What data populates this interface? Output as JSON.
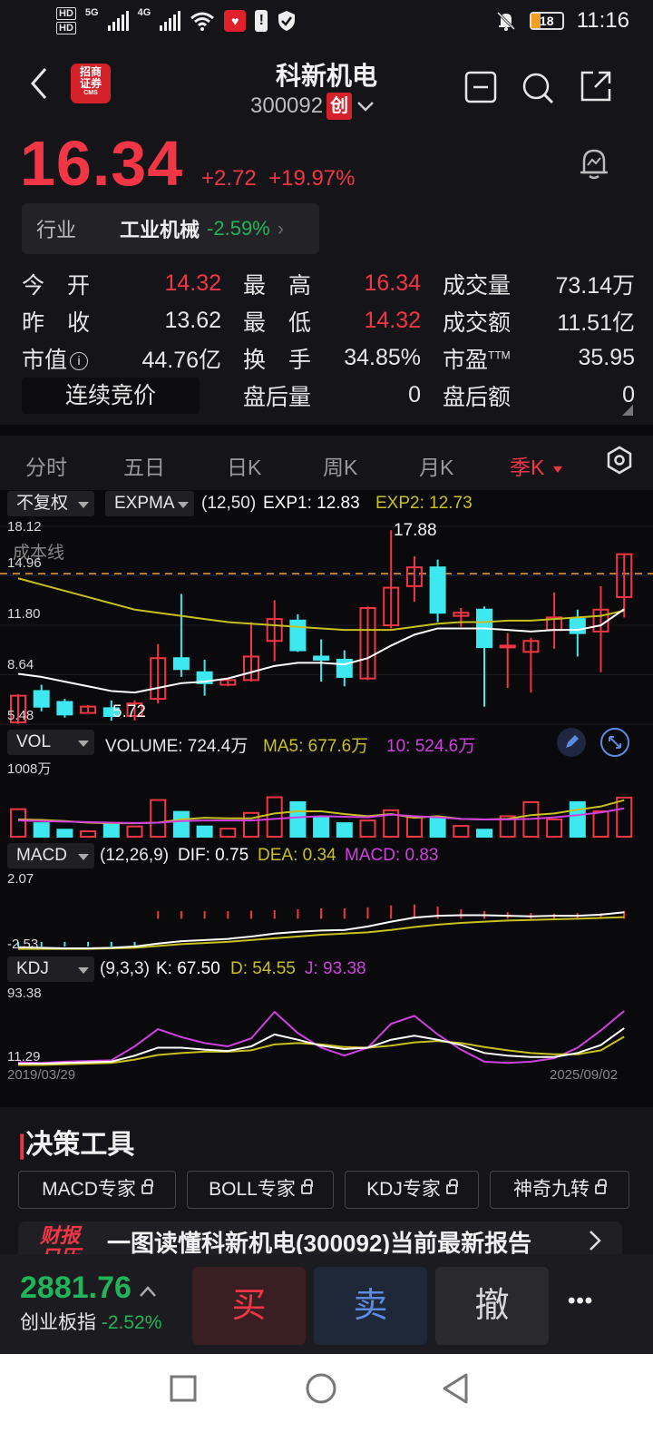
{
  "status_bar": {
    "hd1": "HD",
    "hd2": "HD",
    "net1": "5G",
    "net2": "4G",
    "battery": "18",
    "time": "11:16"
  },
  "header": {
    "broker_logo_line1": "招商",
    "broker_logo_line2": "证券",
    "broker_logo_small": "CMS",
    "title": "科新机电",
    "code": "300092",
    "board_badge": "创"
  },
  "quote": {
    "price": "16.34",
    "change": "+2.72",
    "change_pct": "+19.97%",
    "industry_label": "行业",
    "industry_name": "工业机械",
    "industry_change": "-2.59%"
  },
  "stats": {
    "open_label": "今　开",
    "open": "14.32",
    "high_label": "最　高",
    "high": "16.34",
    "volume_label": "成交量",
    "volume": "73.14万",
    "prev_close_label": "昨　收",
    "prev_close": "13.62",
    "low_label": "最　低",
    "low": "14.32",
    "turnover_label": "成交额",
    "turnover": "11.51亿",
    "mktcap_label": "市值",
    "mktcap": "44.76亿",
    "turnover_rate_label": "换　手",
    "turnover_rate": "34.85%",
    "pe_label": "市盈",
    "pe_sup": "TTM",
    "pe": "35.95",
    "auction_button": "连续竞价",
    "after_vol_label": "盘后量",
    "after_vol": "0",
    "after_amt_label": "盘后额",
    "after_amt": "0"
  },
  "tabs": [
    "分时",
    "五日",
    "日K",
    "周K",
    "月K",
    "季K"
  ],
  "active_tab": "季K",
  "chart_panel": {
    "adjust": "不复权",
    "indicator": "EXPMA",
    "exp_params": "(12,50)",
    "exp1": "EXP1: 12.83",
    "exp2": "EXP2: 12.73",
    "y_labels": [
      "18.12",
      "14.96",
      "11.80",
      "8.64",
      "5.48"
    ],
    "cost_line_label": "成本线",
    "high_mark": "17.88",
    "low_mark": "5.72",
    "vol_dd": "VOL",
    "vol_text": "VOLUME: 724.4万",
    "vol_ma5": "MA5: 677.6万",
    "vol_ma10": "10: 524.6万",
    "vol_max": "1008万",
    "macd_dd": "MACD",
    "macd_params": "(12,26,9)",
    "macd_dif": "DIF: 0.75",
    "macd_dea": "DEA: 0.34",
    "macd_val": "MACD: 0.83",
    "macd_top": "2.07",
    "macd_bottom": "-2.53",
    "kdj_dd": "KDJ",
    "kdj_params": "(9,3,3)",
    "kdj_k": "K: 67.50",
    "kdj_d": "D: 54.55",
    "kdj_j": "J: 93.38",
    "kdj_top": "93.38",
    "kdj_bottom": "11.29",
    "date_start": "2019/03/29",
    "date_end": "2025/09/02",
    "colors": {
      "up": "#f23645",
      "down": "#3ee8f0",
      "exp1": "#ffffff",
      "exp2": "#c8c020",
      "ma10": "#d040e0"
    }
  },
  "chart_data": {
    "type": "candlestick",
    "period": "quarterly",
    "x_range": [
      "2019/03/29",
      "2025/09/02"
    ],
    "ohlc": [
      {
        "o": 5.6,
        "h": 7.4,
        "l": 5.5,
        "c": 7.3
      },
      {
        "o": 7.6,
        "h": 8.0,
        "l": 6.3,
        "c": 6.6
      },
      {
        "o": 6.9,
        "h": 7.1,
        "l": 5.9,
        "c": 6.1
      },
      {
        "o": 6.2,
        "h": 6.7,
        "l": 6.2,
        "c": 6.6
      },
      {
        "o": 6.5,
        "h": 7.0,
        "l": 5.7,
        "c": 6.0
      },
      {
        "o": 6.0,
        "h": 7.0,
        "l": 5.72,
        "c": 6.8
      },
      {
        "o": 7.1,
        "h": 10.6,
        "l": 6.8,
        "c": 9.7
      },
      {
        "o": 9.7,
        "h": 13.8,
        "l": 8.5,
        "c": 9.0
      },
      {
        "o": 8.8,
        "h": 9.6,
        "l": 7.3,
        "c": 8.1
      },
      {
        "o": 8.0,
        "h": 8.4,
        "l": 7.9,
        "c": 8.3
      },
      {
        "o": 8.3,
        "h": 12.0,
        "l": 8.2,
        "c": 9.8
      },
      {
        "o": 10.8,
        "h": 13.4,
        "l": 9.5,
        "c": 12.2
      },
      {
        "o": 12.1,
        "h": 12.5,
        "l": 10.1,
        "c": 10.2
      },
      {
        "o": 9.8,
        "h": 10.9,
        "l": 8.2,
        "c": 9.6
      },
      {
        "o": 9.6,
        "h": 10.2,
        "l": 7.9,
        "c": 8.5
      },
      {
        "o": 8.4,
        "h": 13.0,
        "l": 8.3,
        "c": 12.9
      },
      {
        "o": 11.8,
        "h": 17.88,
        "l": 11.6,
        "c": 14.2
      },
      {
        "o": 14.3,
        "h": 16.2,
        "l": 13.3,
        "c": 15.5
      },
      {
        "o": 15.5,
        "h": 16.0,
        "l": 12.0,
        "c": 12.6
      },
      {
        "o": 12.4,
        "h": 12.9,
        "l": 11.7,
        "c": 12.6
      },
      {
        "o": 12.8,
        "h": 13.0,
        "l": 6.6,
        "c": 10.4
      },
      {
        "o": 10.5,
        "h": 11.3,
        "l": 7.8,
        "c": 10.5
      },
      {
        "o": 10.1,
        "h": 11.0,
        "l": 7.5,
        "c": 10.8
      },
      {
        "o": 11.5,
        "h": 13.9,
        "l": 10.3,
        "c": 12.3
      },
      {
        "o": 12.2,
        "h": 12.8,
        "l": 9.8,
        "c": 11.3
      },
      {
        "o": 11.4,
        "h": 14.3,
        "l": 8.8,
        "c": 12.8
      },
      {
        "o": 13.6,
        "h": 16.34,
        "l": 12.3,
        "c": 16.34
      }
    ],
    "exp1": [
      8.7,
      8.5,
      8.2,
      7.9,
      7.6,
      7.5,
      7.8,
      8.1,
      8.2,
      8.4,
      8.8,
      9.2,
      9.4,
      9.4,
      9.3,
      9.7,
      10.5,
      11.2,
      11.6,
      11.6,
      11.6,
      11.5,
      11.4,
      11.5,
      11.5,
      11.8,
      12.83
    ],
    "exp2": [
      14.8,
      14.4,
      14.0,
      13.6,
      13.2,
      12.8,
      12.6,
      12.4,
      12.2,
      12.0,
      11.9,
      11.8,
      11.7,
      11.6,
      11.5,
      11.5,
      11.5,
      11.7,
      11.9,
      12.0,
      12.0,
      12.1,
      12.1,
      12.2,
      12.3,
      12.4,
      12.73
    ],
    "volume_wan": [
      510,
      250,
      130,
      100,
      230,
      190,
      680,
      460,
      190,
      150,
      440,
      730,
      640,
      360,
      250,
      300,
      490,
      360,
      340,
      200,
      130,
      380,
      640,
      320,
      640,
      470,
      724.4
    ],
    "vol_ma5": [
      320,
      310,
      290,
      260,
      250,
      250,
      260,
      320,
      350,
      340,
      340,
      430,
      470,
      470,
      420,
      380,
      420,
      350,
      380,
      330,
      320,
      330,
      400,
      430,
      500,
      560,
      677.6
    ],
    "vol_ma10": [
      300,
      290,
      280,
      270,
      260,
      255,
      260,
      290,
      300,
      300,
      300,
      330,
      360,
      380,
      370,
      360,
      410,
      380,
      360,
      330,
      320,
      320,
      330,
      360,
      400,
      450,
      524.6
    ],
    "macd": {
      "dif": [
        -2.2,
        -2.25,
        -2.3,
        -2.3,
        -2.25,
        -2.15,
        -1.9,
        -1.7,
        -1.6,
        -1.5,
        -1.3,
        -1.05,
        -0.9,
        -0.8,
        -0.75,
        -0.45,
        -0.05,
        0.3,
        0.45,
        0.5,
        0.5,
        0.45,
        0.4,
        0.45,
        0.45,
        0.55,
        0.75
      ],
      "dea": [
        -2.35,
        -2.35,
        -2.35,
        -2.35,
        -2.3,
        -2.25,
        -2.1,
        -1.95,
        -1.85,
        -1.75,
        -1.6,
        -1.45,
        -1.3,
        -1.15,
        -1.05,
        -0.95,
        -0.75,
        -0.5,
        -0.3,
        -0.15,
        -0.05,
        0.05,
        0.1,
        0.15,
        0.2,
        0.27,
        0.34
      ],
      "hist": [
        0.8,
        0.8,
        0.8,
        0.8,
        0.8,
        0.8,
        0.8,
        0.8,
        0.8,
        0.8,
        0.85,
        0.9,
        1.0,
        1.1,
        1.1,
        1.2,
        1.4,
        1.5,
        1.3,
        1.0,
        0.8,
        0.7,
        0.6,
        0.55,
        0.6,
        0.6,
        0.83
      ]
    },
    "kdj": {
      "k": [
        14,
        14,
        15,
        16,
        17,
        26,
        38,
        38,
        35,
        33,
        40,
        58,
        50,
        41,
        36,
        38,
        50,
        56,
        50,
        42,
        30,
        26,
        24,
        24,
        30,
        42,
        67.5
      ],
      "d": [
        12,
        12,
        13,
        14,
        15,
        20,
        27,
        30,
        32,
        32,
        34,
        43,
        45,
        43,
        39,
        38,
        41,
        46,
        48,
        45,
        39,
        34,
        30,
        28,
        28,
        34,
        54.55
      ],
      "j": [
        16,
        15,
        17,
        18,
        19,
        40,
        66,
        54,
        45,
        40,
        52,
        92,
        60,
        38,
        26,
        38,
        74,
        86,
        58,
        35,
        17,
        15,
        17,
        22,
        38,
        64,
        93.38
      ]
    }
  },
  "tools": {
    "title": "决策工具",
    "buttons": [
      "MACD专家",
      "BOLL专家",
      "KDJ专家",
      "神奇九转"
    ]
  },
  "report_banner": {
    "icon_line1": "财报",
    "icon_line2": "日历",
    "text": "一图读懂科新机电(300092)当前最新报告"
  },
  "bottom": {
    "index_value": "2881.76",
    "index_name": "创业板指",
    "index_change": "-2.52%",
    "buy": "买",
    "sell": "卖",
    "cancel": "撤",
    "more": "•••"
  }
}
